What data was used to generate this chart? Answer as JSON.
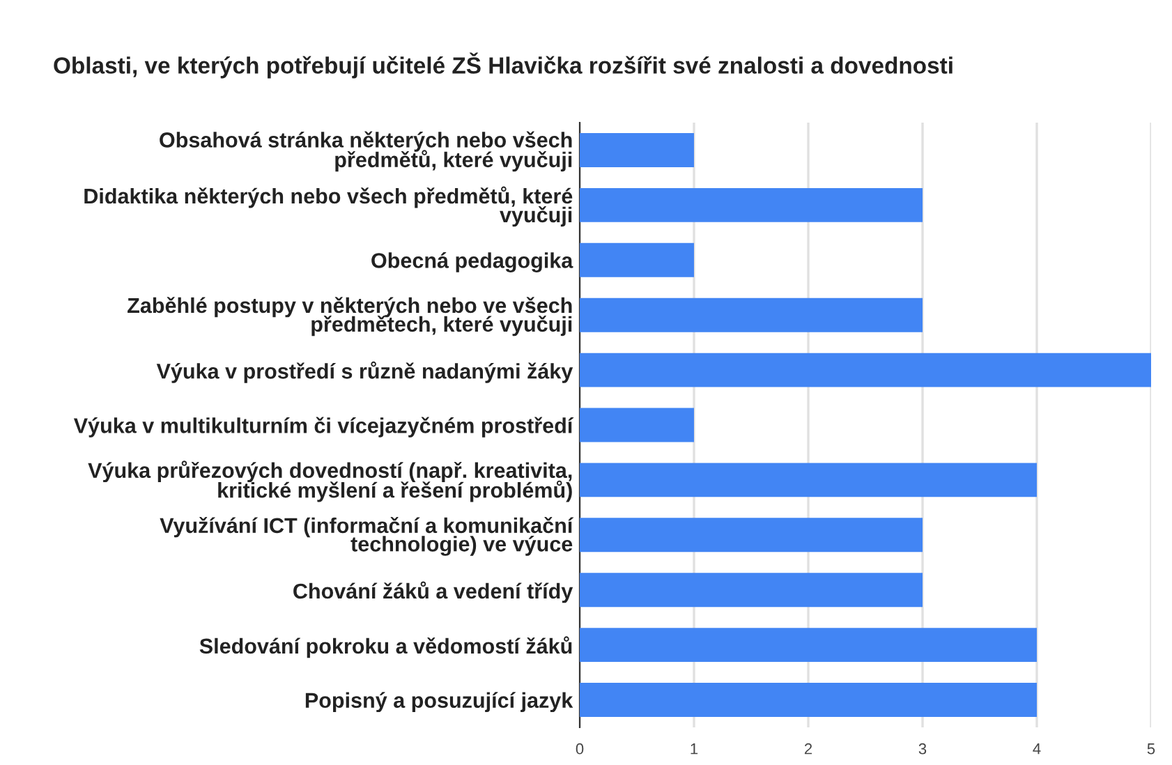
{
  "chart_data": {
    "type": "bar",
    "orientation": "horizontal",
    "title": "Oblasti, ve kterých potřebují učitelé ZŠ Hlavička rozšířit své znalosti a dovednosti",
    "categories": [
      "Obsahová stránka některých nebo všech\npředmětů, které vyučuji",
      "Didaktika některých nebo všech předmětů, které\nvyučuji",
      "Obecná pedagogika",
      "Zaběhlé postupy v některých nebo ve všech\npředmětech, které vyučuji",
      "Výuka v prostředí s různě nadanými žáky",
      "Výuka v multikulturním či vícejazyčném prostředí",
      "Výuka průřezových dovedností (např. kreativita,\nkritické myšlení a řešení problémů)",
      "Využívání ICT (informační a komunikační\ntechnologie) ve výuce",
      "Chování žáků a vedení třídy",
      "Sledování pokroku a vědomostí žáků",
      "Popisný a posuzující jazyk"
    ],
    "values": [
      1,
      3,
      1,
      3,
      5,
      1,
      4,
      3,
      3,
      4,
      4
    ],
    "color": "#4285f4",
    "xlim": [
      0,
      5
    ],
    "xticks": [
      0,
      1,
      2,
      3,
      4,
      5
    ],
    "grid": "x",
    "legend": false
  }
}
